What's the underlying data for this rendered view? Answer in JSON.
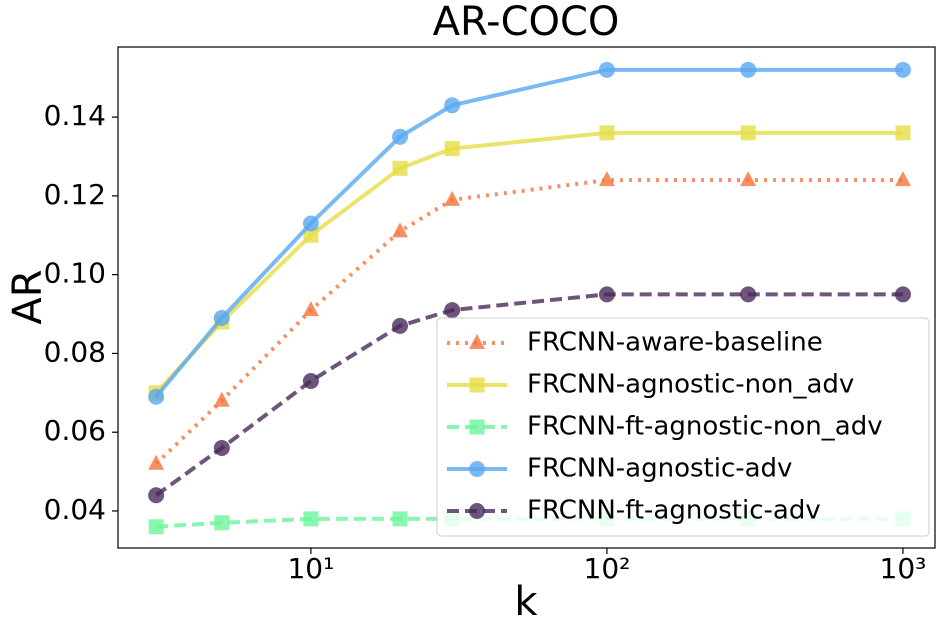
{
  "chart_data": {
    "type": "line",
    "title": "AR-COCO",
    "xlabel": "k",
    "ylabel": "AR",
    "x": [
      3,
      5,
      10,
      20,
      30,
      100,
      300,
      1000
    ],
    "xscale": "log",
    "xlim": [
      2.23,
      1283
    ],
    "xticks": [
      {
        "value": 10,
        "label": "10¹"
      },
      {
        "value": 100,
        "label": "10²"
      },
      {
        "value": 1000,
        "label": "10³"
      }
    ],
    "ylim": [
      0.0306,
      0.1578
    ],
    "yticks": [
      0.04,
      0.06,
      0.08,
      {
        "value": 0.1,
        "label": "0.10"
      },
      0.12,
      0.14
    ],
    "legend": "lower right",
    "series": [
      {
        "name": "FRCNN-aware-baseline",
        "color": "#f4743b",
        "marker": "triangle",
        "linestyle": "dotted",
        "values": [
          0.052,
          0.068,
          0.091,
          0.111,
          0.119,
          0.124,
          0.124,
          0.124
        ]
      },
      {
        "name": "FRCNN-agnostic-non_adv",
        "color": "#e5df45",
        "marker": "square",
        "linestyle": "solid",
        "values": [
          0.07,
          0.088,
          0.11,
          0.127,
          0.132,
          0.136,
          0.136,
          0.136
        ]
      },
      {
        "name": "FRCNN-ft-agnostic-non_adv",
        "color": "#6df59a",
        "marker": "square",
        "linestyle": "dashed",
        "values": [
          0.036,
          0.037,
          0.038,
          0.038,
          0.038,
          0.038,
          0.038,
          0.038
        ]
      },
      {
        "name": "FRCNN-agnostic-adv",
        "color": "#5aa8f0",
        "marker": "circle",
        "linestyle": "solid",
        "values": [
          0.069,
          0.089,
          0.113,
          0.135,
          0.143,
          0.152,
          0.152,
          0.152
        ]
      },
      {
        "name": "FRCNN-ft-agnostic-adv",
        "color": "#4a2a5a",
        "marker": "circle",
        "linestyle": "dashed",
        "values": [
          0.044,
          0.056,
          0.073,
          0.087,
          0.091,
          0.095,
          0.095,
          0.095
        ]
      }
    ]
  }
}
